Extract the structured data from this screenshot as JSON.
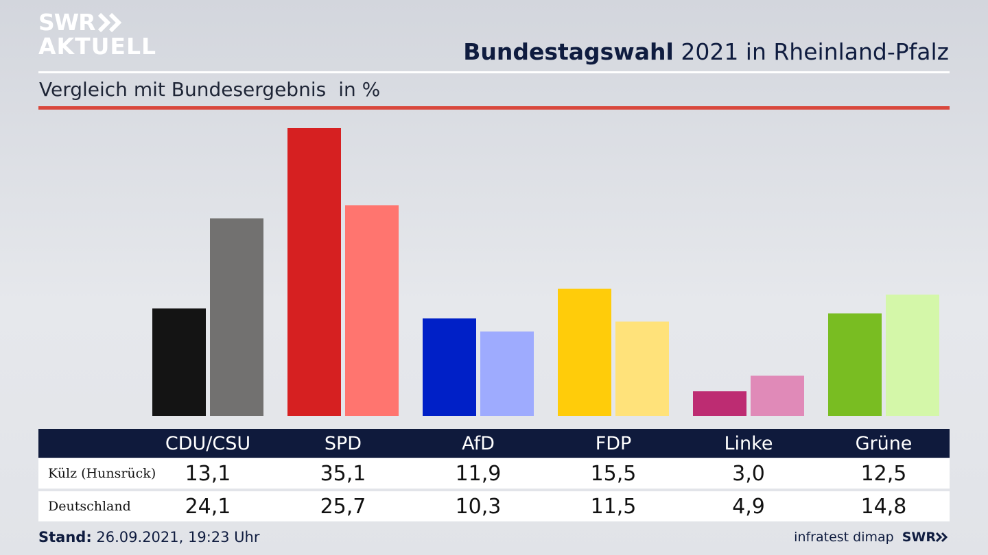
{
  "logo": {
    "line1": "SWR",
    "line2": "AKTUELL"
  },
  "title": {
    "bold": "Bundestagswahl",
    "rest": " 2021 in Rheinland-Pfalz"
  },
  "subtitle": "Vergleich mit Bundesergebnis",
  "unit": "in %",
  "chart_data": {
    "type": "bar",
    "title": "Bundestagswahl 2021 in Rheinland-Pfalz",
    "subtitle": "Vergleich mit Bundesergebnis",
    "unit": "in %",
    "categories": [
      "CDU/CSU",
      "SPD",
      "AfD",
      "FDP",
      "Linke",
      "Grüne"
    ],
    "series": [
      {
        "name": "Külz (Hunsrück)",
        "values": [
          13.1,
          35.1,
          11.9,
          15.5,
          3.0,
          12.5
        ],
        "labels": [
          "13,1",
          "35,1",
          "11,9",
          "15,5",
          "3,0",
          "12,5"
        ],
        "colors": [
          "#141414",
          "#d62021",
          "#0020c7",
          "#ffcc0a",
          "#bd2c72",
          "#79bd22"
        ]
      },
      {
        "name": "Deutschland",
        "values": [
          24.1,
          25.7,
          10.3,
          11.5,
          4.9,
          14.8
        ],
        "labels": [
          "24,1",
          "25,7",
          "10,3",
          "11,5",
          "4,9",
          "14,8"
        ],
        "colors": [
          "#727170",
          "#ff756f",
          "#9eabfe",
          "#ffe27a",
          "#e08ab8",
          "#d4f7a9"
        ]
      }
    ],
    "ylim": [
      0,
      35.1
    ]
  },
  "footer": {
    "stand_label": "Stand:",
    "stand_value": " 26.09.2021, 19:23 Uhr",
    "source": "infratest dimap",
    "brand": "SWR"
  }
}
